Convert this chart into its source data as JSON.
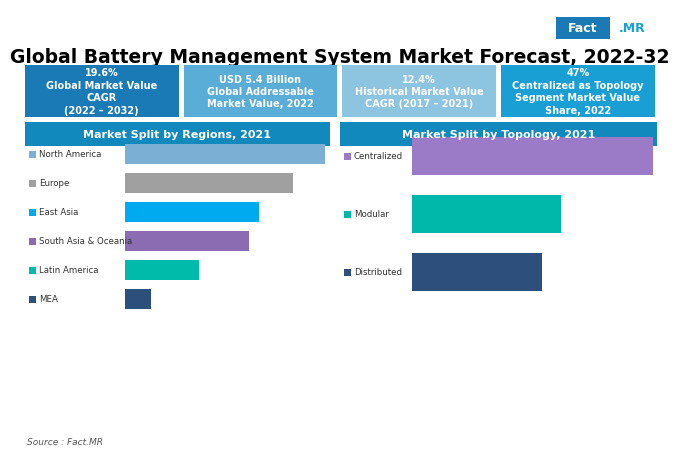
{
  "title": "Global Battery Management System Market Forecast, 2022-32",
  "bg_color": "#ffffff",
  "header_boxes": [
    {
      "text": "19.6%\nGlobal Market Value\nCAGR\n(2022 – 2032)",
      "color": "#1a7ab5"
    },
    {
      "text": "USD 5.4 Billion\nGlobal Addressable\nMarket Value, 2022",
      "color": "#5aadd6"
    },
    {
      "text": "12.4%\nHistorical Market Value\nCAGR (2017 – 2021)",
      "color": "#8dc4e0"
    },
    {
      "text": "47%\nCentralized as Topology\nSegment Market Value\nShare, 2022",
      "color": "#1a9fd4"
    }
  ],
  "regions_title": "Market Split by Regions, 2021",
  "regions_title_bg": "#1189bc",
  "regions": [
    "North America",
    "Europe",
    "East Asia",
    "South Asia & Oceania",
    "Latin America",
    "MEA"
  ],
  "regions_values": [
    100,
    84,
    67,
    62,
    37,
    13
  ],
  "regions_colors": [
    "#7bafd4",
    "#a0a0a0",
    "#00aaee",
    "#8b6bb1",
    "#00bbaa",
    "#2d4f7c"
  ],
  "topology_title": "Market Split by Topology, 2021",
  "topology_title_bg": "#1189bc",
  "topology": [
    "Centralized",
    "Modular",
    "Distributed"
  ],
  "topology_values": [
    100,
    62,
    54
  ],
  "topology_colors": [
    "#9b7bc8",
    "#00b8aa",
    "#2d4f7c"
  ],
  "source_text": "Source : Fact.MR",
  "factmr_box_color": "#1a7ab5",
  "factmr_dot_color": "#1a9fd4"
}
